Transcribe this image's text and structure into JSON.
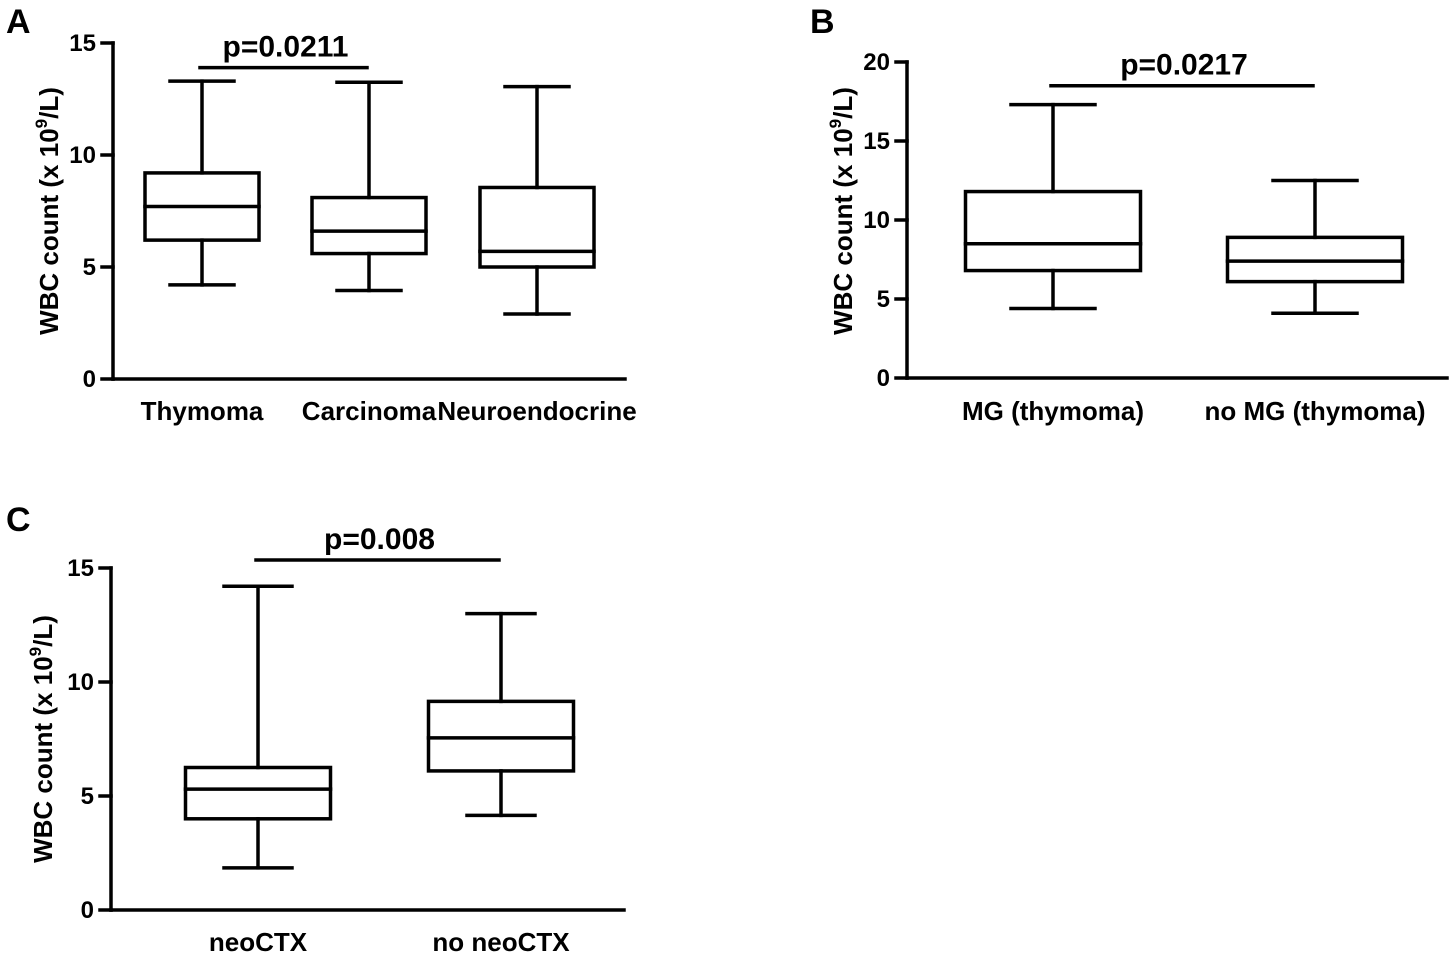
{
  "chart_data": [
    {
      "panel": "A",
      "type": "box",
      "ylabel": {
        "main": "WBC count (x 10",
        "sup": "9",
        "end": "/L)"
      },
      "ylim": [
        0,
        15
      ],
      "yticks": [
        0,
        5,
        10,
        15
      ],
      "categories": [
        "Thymoma",
        "Carcinoma",
        "Neuroendocrine"
      ],
      "boxes": [
        {
          "min": 4.2,
          "q1": 6.2,
          "median": 7.7,
          "q3": 9.2,
          "max": 13.3
        },
        {
          "min": 3.95,
          "q1": 5.6,
          "median": 6.6,
          "q3": 8.1,
          "max": 13.25
        },
        {
          "min": 2.9,
          "q1": 5.0,
          "median": 5.7,
          "q3": 8.55,
          "max": 13.05
        }
      ],
      "comparison": {
        "from": 0,
        "to": 1,
        "y": 13.9,
        "label": "p=0.0211"
      }
    },
    {
      "panel": "B",
      "type": "box",
      "ylabel": {
        "main": "WBC count (x 10",
        "sup": "9",
        "end": "/L)"
      },
      "ylim": [
        0,
        20
      ],
      "yticks": [
        0,
        5,
        10,
        15,
        20
      ],
      "categories": [
        "MG (thymoma)",
        "no MG (thymoma)"
      ],
      "boxes": [
        {
          "min": 4.4,
          "q1": 6.8,
          "median": 8.5,
          "q3": 11.8,
          "max": 17.3
        },
        {
          "min": 4.1,
          "q1": 6.1,
          "median": 7.4,
          "q3": 8.9,
          "max": 12.5
        }
      ],
      "comparison": {
        "from": 0,
        "to": 1,
        "y": 18.5,
        "label": "p=0.0217"
      }
    },
    {
      "panel": "C",
      "type": "box",
      "ylabel": {
        "main": "WBC count (x 10",
        "sup": "9",
        "end": "/L)"
      },
      "ylim": [
        0,
        15
      ],
      "yticks": [
        0,
        5,
        10,
        15
      ],
      "categories": [
        "neoCTX",
        "no neoCTX"
      ],
      "boxes": [
        {
          "min": 1.85,
          "q1": 4.0,
          "median": 5.3,
          "q3": 6.25,
          "max": 14.2
        },
        {
          "min": 4.15,
          "q1": 6.1,
          "median": 7.55,
          "q3": 9.15,
          "max": 13.0
        }
      ],
      "comparison": {
        "from": 0,
        "to": 1,
        "y": 15.35,
        "label": "p=0.008"
      }
    }
  ]
}
